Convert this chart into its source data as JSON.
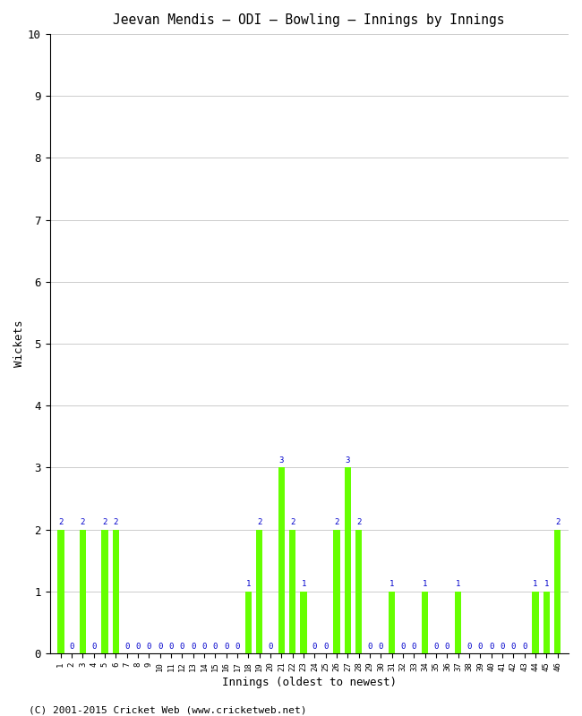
{
  "title": "Jeevan Mendis – ODI – Bowling – Innings by Innings",
  "xlabel": "Innings (oldest to newest)",
  "ylabel": "Wickets",
  "ylim": [
    0,
    10
  ],
  "yticks": [
    0,
    1,
    2,
    3,
    4,
    5,
    6,
    7,
    8,
    9,
    10
  ],
  "bar_color": "#66ff00",
  "label_color": "#0000cc",
  "background_color": "#ffffff",
  "grid_color": "#cccccc",
  "innings": [
    1,
    2,
    3,
    4,
    5,
    6,
    7,
    8,
    9,
    10,
    11,
    12,
    13,
    14,
    15,
    16,
    17,
    18,
    19,
    20,
    21,
    22,
    23,
    24,
    25,
    26,
    27,
    28,
    29,
    30,
    31,
    32,
    33,
    34,
    35,
    36,
    37,
    38,
    39,
    40,
    41,
    42,
    43,
    44,
    45,
    46
  ],
  "wickets": [
    2,
    0,
    2,
    0,
    2,
    2,
    0,
    0,
    0,
    0,
    0,
    0,
    0,
    0,
    0,
    0,
    0,
    1,
    2,
    0,
    3,
    2,
    1,
    0,
    0,
    2,
    3,
    2,
    0,
    0,
    1,
    0,
    0,
    1,
    0,
    0,
    1,
    0,
    0,
    0,
    0,
    0,
    0,
    1,
    1,
    2
  ],
  "copyright": "(C) 2001-2015 Cricket Web (www.cricketweb.net)"
}
